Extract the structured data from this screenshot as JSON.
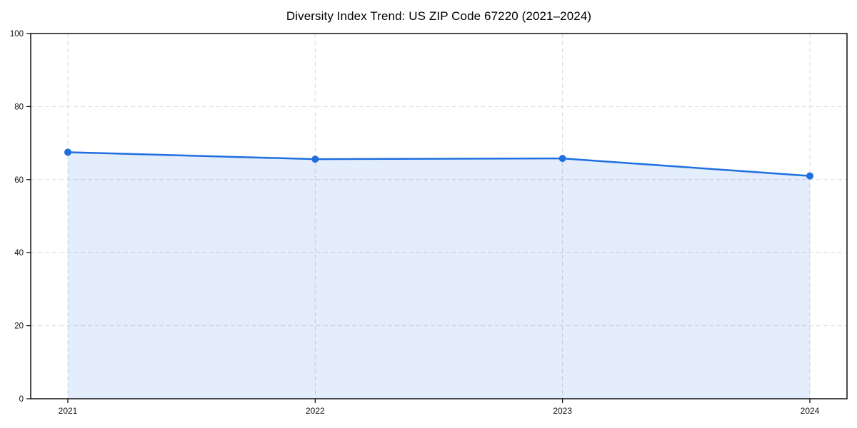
{
  "chart_data": {
    "type": "area",
    "title": "Diversity Index Trend: US ZIP Code 67220 (2021–2024)",
    "xlabel": "",
    "ylabel": "",
    "categories": [
      "2021",
      "2022",
      "2023",
      "2024"
    ],
    "series": [
      {
        "name": "Diversity Index",
        "values": [
          67.5,
          65.6,
          65.8,
          61.0
        ]
      }
    ],
    "ylim": [
      0,
      100
    ],
    "yticks": [
      0,
      20,
      40,
      60,
      80,
      100
    ],
    "grid": "dashed",
    "legend": "none",
    "colors": {
      "line": "#1f6fe0",
      "marker": "#1f6fe0",
      "fill": "#1f6fe0",
      "fill_opacity": 0.12,
      "gridline": "#d9d9d9",
      "spine": "#000000",
      "tick_label": "#111111",
      "background": "#ffffff"
    }
  }
}
